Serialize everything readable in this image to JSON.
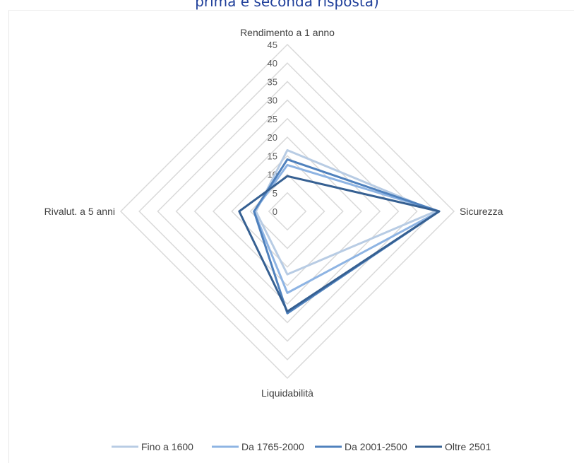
{
  "header": {
    "partial_title": "prima e seconda risposta)"
  },
  "chart_data": {
    "type": "radar",
    "axes": [
      "Rendimento a 1 anno",
      "Sicurezza",
      "Liquidabilità",
      "Rivalut. a 5 anni"
    ],
    "r_ticks": [
      "0",
      "5",
      "10",
      "15",
      "20",
      "25",
      "30",
      "35",
      "40",
      "45"
    ],
    "rlim": [
      0,
      45
    ],
    "grid": true,
    "legend_position": "bottom",
    "series": [
      {
        "name": "Fino a 1600",
        "values": [
          16.5,
          40,
          17,
          8.5
        ],
        "color": "#b8cce4"
      },
      {
        "name": "Da 1765-2000",
        "values": [
          12.5,
          41,
          22,
          9
        ],
        "color": "#8eb4e3"
      },
      {
        "name": "Da 2001-2500",
        "values": [
          14,
          41,
          27.5,
          9
        ],
        "color": "#4f81bd"
      },
      {
        "name": "Oltre 2501",
        "values": [
          9.5,
          41,
          27,
          13
        ],
        "color": "#366092"
      }
    ]
  }
}
